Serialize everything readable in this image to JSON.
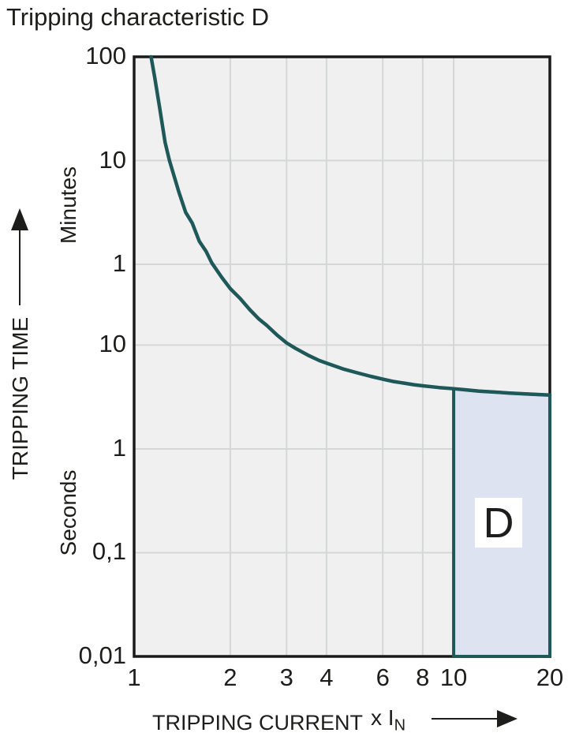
{
  "title": "Tripping characteristic D",
  "colors": {
    "curve": "#1e5858",
    "region_fill": "#dde3f1",
    "region_border": "#1e5858",
    "plot_bg": "#f0f0f0",
    "grid": "#d5d7d7",
    "frame": "#1a1a1a",
    "text": "#1d1d1b"
  },
  "chart_data": {
    "type": "line",
    "title": "Tripping characteristic D",
    "x_axis": {
      "title": "TRIPPING CURRENT",
      "unit_prefix": "x I",
      "unit_sub": "N",
      "scale": "log",
      "range": [
        1,
        20
      ],
      "ticks": [
        {
          "value": 1,
          "label": "1"
        },
        {
          "value": 2,
          "label": "2"
        },
        {
          "value": 3,
          "label": "3"
        },
        {
          "value": 4,
          "label": "4"
        },
        {
          "value": 6,
          "label": "6"
        },
        {
          "value": 8,
          "label": "8"
        },
        {
          "value": 10,
          "label": "10"
        },
        {
          "value": 20,
          "label": "20"
        }
      ],
      "grid_at": [
        2,
        3,
        4,
        6,
        8,
        10
      ]
    },
    "y_axis": {
      "title": "TRIPPING TIME",
      "scale": "log",
      "range_seconds": [
        0.01,
        6000
      ],
      "unit_minutes_label": "Minutes",
      "unit_seconds_label": "Seconds",
      "ticks": [
        {
          "label": "100",
          "seconds": 6000,
          "unit": "minutes"
        },
        {
          "label": "10",
          "seconds": 600,
          "unit": "minutes"
        },
        {
          "label": "1",
          "seconds": 60,
          "unit": "minutes"
        },
        {
          "label": "10",
          "seconds": 10,
          "unit": "seconds"
        },
        {
          "label": "1",
          "seconds": 1,
          "unit": "seconds"
        },
        {
          "label": "0,1",
          "seconds": 0.1,
          "unit": "seconds"
        },
        {
          "label": "0,01",
          "seconds": 0.01,
          "unit": "seconds"
        }
      ],
      "grid_at_seconds": [
        600,
        60,
        10,
        1,
        0.1
      ]
    },
    "series": [
      {
        "name": "D tripping curve",
        "points_x_seconds": [
          [
            1.13,
            6000
          ],
          [
            1.16,
            3800
          ],
          [
            1.2,
            2000
          ],
          [
            1.25,
            900
          ],
          [
            1.29,
            600
          ],
          [
            1.38,
            300
          ],
          [
            1.45,
            190
          ],
          [
            1.52,
            150
          ],
          [
            1.6,
            100
          ],
          [
            1.68,
            80
          ],
          [
            1.75,
            62
          ],
          [
            1.88,
            45
          ],
          [
            2.0,
            35
          ],
          [
            2.15,
            28
          ],
          [
            2.3,
            22
          ],
          [
            2.45,
            18
          ],
          [
            2.6,
            15.5
          ],
          [
            2.8,
            12.5
          ],
          [
            3.0,
            10.5
          ],
          [
            3.2,
            9.3
          ],
          [
            3.5,
            8.0
          ],
          [
            3.8,
            7.1
          ],
          [
            4.0,
            6.7
          ],
          [
            4.5,
            5.9
          ],
          [
            5.0,
            5.4
          ],
          [
            5.5,
            5.0
          ],
          [
            6.0,
            4.7
          ],
          [
            6.5,
            4.45
          ],
          [
            7.0,
            4.3
          ],
          [
            7.5,
            4.15
          ],
          [
            8.0,
            4.05
          ],
          [
            9.0,
            3.9
          ],
          [
            10,
            3.8
          ],
          [
            11,
            3.7
          ],
          [
            12,
            3.6
          ],
          [
            13.5,
            3.52
          ],
          [
            15,
            3.45
          ],
          [
            17,
            3.38
          ],
          [
            20,
            3.3
          ]
        ]
      }
    ],
    "region": {
      "label": "D",
      "x_range": [
        10,
        20
      ],
      "bottom_seconds": 0.01,
      "top_boundary": "curve"
    }
  }
}
